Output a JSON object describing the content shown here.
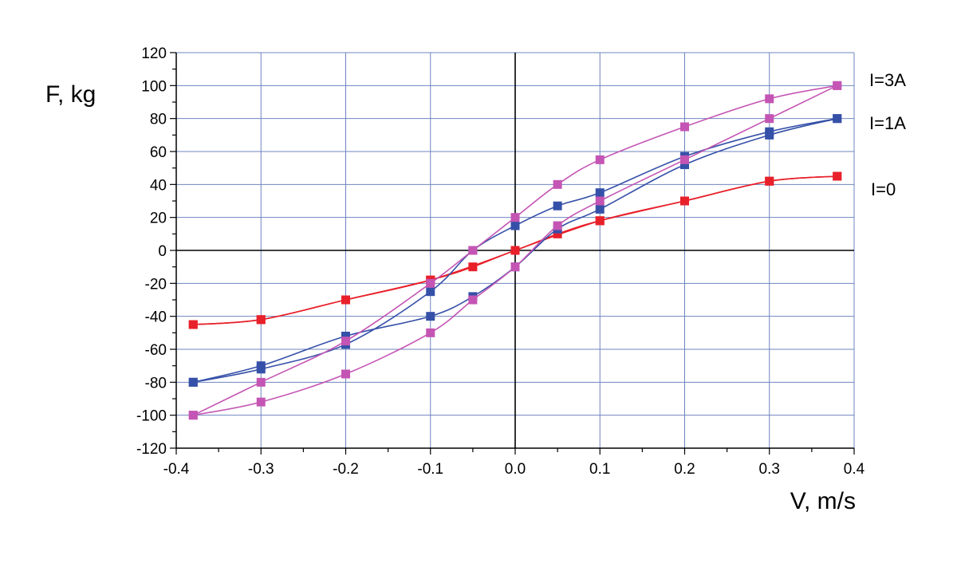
{
  "chart_data": {
    "type": "line",
    "title": "",
    "xlabel": "V, m/s",
    "ylabel": "F, kg",
    "xlim": [
      -0.4,
      0.4
    ],
    "ylim": [
      -120,
      120
    ],
    "x_ticks": [
      -0.4,
      -0.3,
      -0.2,
      -0.1,
      0.0,
      0.1,
      0.2,
      0.3,
      0.4
    ],
    "x_tick_labels": [
      "-0.4",
      "-0.3",
      "-0.2",
      "-0.1",
      "0.0",
      "0.1",
      "0.2",
      "0.3",
      "0.4"
    ],
    "y_ticks": [
      120,
      100,
      80,
      60,
      40,
      20,
      0,
      -20,
      -40,
      -60,
      -80,
      -100,
      -120
    ],
    "y_tick_labels": [
      "120",
      "100",
      "80",
      "60",
      "40",
      "20",
      "0",
      "-20",
      "-40",
      "-60",
      "-80",
      "-100",
      "-120"
    ],
    "grid": true,
    "colors": {
      "I=0": "#e8202a",
      "I=1A": "#3550a8",
      "I=3A": "#c455b4",
      "grid": "#6f84bf",
      "axes": "#000000"
    },
    "series": [
      {
        "name": "I=0",
        "loops": [
          {
            "x": [
              -0.38,
              -0.3,
              -0.2,
              -0.1,
              0.0,
              0.05,
              0.1,
              0.2,
              0.3,
              0.38
            ],
            "y": [
              -45,
              -42,
              -30,
              -18,
              0,
              10,
              18,
              30,
              42,
              45
            ]
          },
          {
            "x": [
              0.38,
              0.3,
              0.2,
              0.1,
              0.0,
              -0.05,
              -0.1,
              -0.2,
              -0.3,
              -0.38
            ],
            "y": [
              45,
              42,
              30,
              18,
              0,
              -10,
              -18,
              -30,
              -42,
              -45
            ]
          }
        ]
      },
      {
        "name": "I=1A",
        "loops": [
          {
            "x": [
              -0.38,
              -0.3,
              -0.2,
              -0.1,
              -0.05,
              0.0,
              0.05,
              0.1,
              0.2,
              0.3,
              0.38
            ],
            "y": [
              -80,
              -72,
              -57,
              -25,
              0,
              15,
              27,
              35,
              57,
              72,
              80
            ]
          },
          {
            "x": [
              0.38,
              0.3,
              0.2,
              0.1,
              0.05,
              0.0,
              -0.05,
              -0.1,
              -0.2,
              -0.3,
              -0.38
            ],
            "y": [
              80,
              70,
              52,
              25,
              13,
              -10,
              -28,
              -40,
              -52,
              -70,
              -80
            ]
          }
        ]
      },
      {
        "name": "I=3A",
        "loops": [
          {
            "x": [
              -0.38,
              -0.3,
              -0.2,
              -0.1,
              -0.05,
              0.0,
              0.05,
              0.1,
              0.2,
              0.3,
              0.38
            ],
            "y": [
              -100,
              -80,
              -55,
              -20,
              0,
              20,
              40,
              55,
              75,
              92,
              100
            ]
          },
          {
            "x": [
              0.38,
              0.3,
              0.2,
              0.1,
              0.05,
              0.0,
              -0.05,
              -0.1,
              -0.2,
              -0.3,
              -0.38
            ],
            "y": [
              100,
              80,
              55,
              30,
              15,
              -10,
              -30,
              -50,
              -75,
              -92,
              -100
            ]
          }
        ]
      }
    ]
  }
}
